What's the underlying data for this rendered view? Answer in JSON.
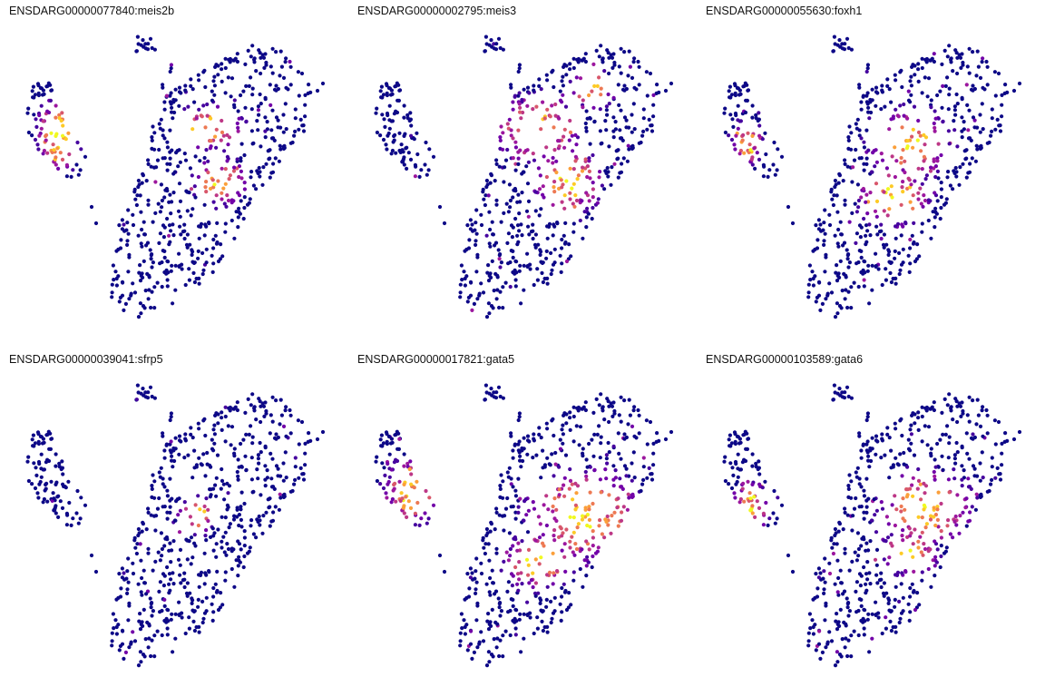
{
  "chart_data": {
    "type": "scatter",
    "color_scale": [
      "#0d0887",
      "#46039f",
      "#7201a8",
      "#9c179e",
      "#bd3786",
      "#d8576b",
      "#ed7953",
      "#fb9f3a",
      "#fdca26",
      "#f0f921"
    ],
    "grid": false,
    "legend": "none",
    "panels": [
      {
        "title": "ENSDARG00000077840:meis2b",
        "hot_regions": [
          [
            0.22,
            0.3,
            0.18,
            0.12
          ],
          [
            -0.75,
            0.25,
            0.12,
            0.2
          ],
          [
            0.3,
            -0.05,
            0.14,
            0.12
          ]
        ]
      },
      {
        "title": "ENSDARG00000002795:meis3",
        "hot_regions": [
          [
            0.1,
            0.3,
            0.22,
            0.18
          ],
          [
            0.3,
            -0.05,
            0.18,
            0.18
          ],
          [
            0.45,
            0.55,
            0.12,
            0.1
          ]
        ]
      },
      {
        "title": "ENSDARG00000055630:foxh1",
        "hot_regions": [
          [
            0.25,
            0.2,
            0.22,
            0.18
          ],
          [
            -0.8,
            0.2,
            0.08,
            0.12
          ],
          [
            0.15,
            -0.15,
            0.2,
            0.15
          ]
        ]
      },
      {
        "title": "ENSDARG00000039041:sfrp5",
        "hot_regions": [
          [
            0.15,
            0.05,
            0.1,
            0.1
          ]
        ]
      },
      {
        "title": "ENSDARG00000017821:gata5",
        "hot_regions": [
          [
            0.4,
            0.05,
            0.3,
            0.25
          ],
          [
            -0.72,
            0.2,
            0.15,
            0.18
          ],
          [
            0.1,
            -0.25,
            0.18,
            0.15
          ]
        ]
      },
      {
        "title": "ENSDARG00000103589:gata6",
        "hot_regions": [
          [
            0.35,
            0.1,
            0.25,
            0.2
          ],
          [
            -0.78,
            0.1,
            0.1,
            0.15
          ],
          [
            0.25,
            -0.2,
            0.15,
            0.12
          ]
        ]
      }
    ]
  }
}
